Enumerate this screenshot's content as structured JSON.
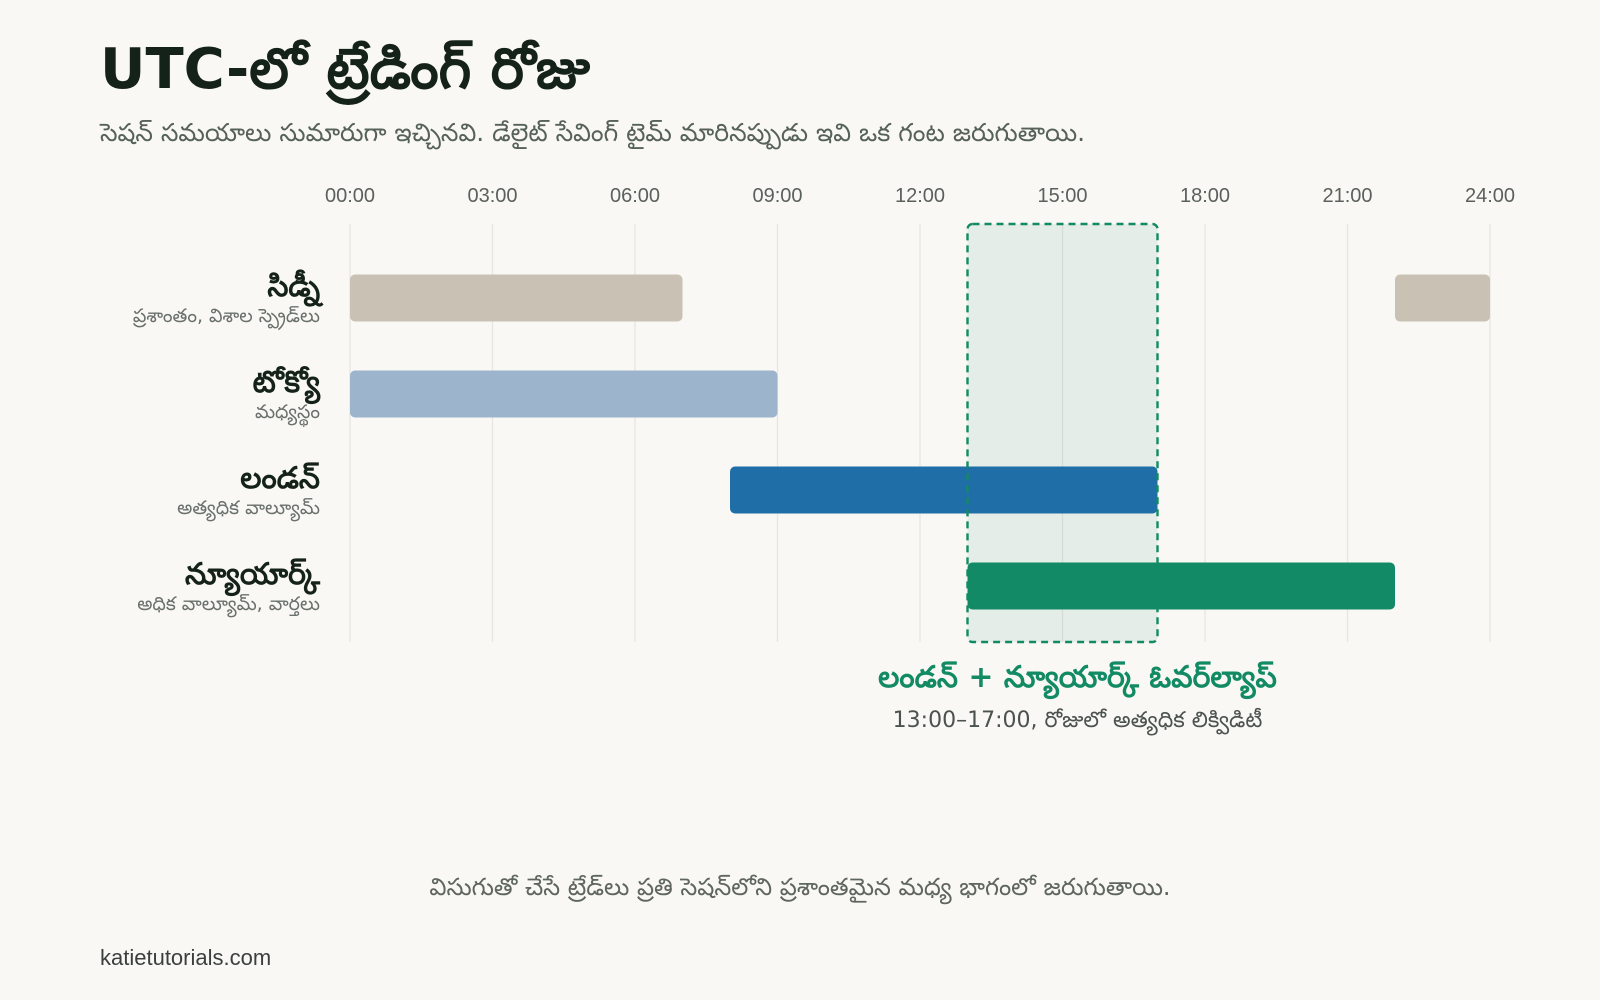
{
  "title": "UTC-లో ట్రేడింగ్ రోజు",
  "subtitle": "సెషన్ సమయాలు సుమారుగా ఇచ్చినవి. డేలైట్ సేవింగ్ టైమ్ మారినప్పుడు ఇవి ఒక గంట జరుగుతాయి.",
  "footnote": "విసుగుతో చేసే ట్రేడ్‌లు ప్రతి సెషన్‌లోని ప్రశాంతమైన మధ్య భాగంలో జరుగుతాయి.",
  "source": "katietutorials.com",
  "chart_data": {
    "type": "gantt",
    "x_unit": "UTC hour",
    "xlim": [
      0,
      24
    ],
    "ticks": [
      "00:00",
      "03:00",
      "06:00",
      "09:00",
      "12:00",
      "15:00",
      "18:00",
      "21:00",
      "24:00"
    ],
    "sessions": [
      {
        "name": "సిడ్నీ",
        "note": "ప్రశాంతం, విశాల స్ప్రెడ్‌లు",
        "color": "#c9c1b3",
        "intervals": [
          {
            "start": 0,
            "end": 7
          },
          {
            "start": 22,
            "end": 24
          }
        ]
      },
      {
        "name": "టోక్యో",
        "note": "మధ్యస్థం",
        "color": "#9cb4cc",
        "intervals": [
          {
            "start": 0,
            "end": 9
          }
        ]
      },
      {
        "name": "లండన్",
        "note": "అత్యధిక వాల్యూమ్",
        "color": "#1f6ea8",
        "intervals": [
          {
            "start": 8,
            "end": 17
          }
        ]
      },
      {
        "name": "న్యూయార్క్",
        "note": "అధిక వాల్యూమ్, వార్తలు",
        "color": "#138a66",
        "intervals": [
          {
            "start": 13,
            "end": 22
          }
        ]
      }
    ],
    "overlap": {
      "start": 13,
      "end": 17,
      "title": "లండన్ + న్యూయార్క్ ఓవర్‌ల్యాప్",
      "subtitle": "13:00–17:00, రోజులో అత్యధిక లిక్విడిటీ",
      "color": "#128a63"
    },
    "grid": true
  }
}
